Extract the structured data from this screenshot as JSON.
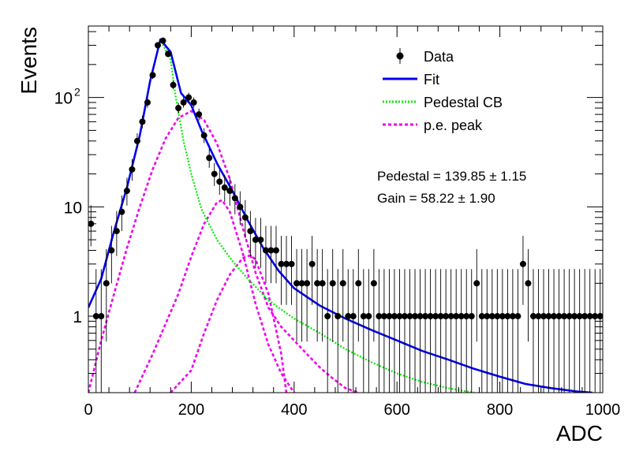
{
  "chart_data": {
    "type": "scatter",
    "title": "",
    "xlabel": "ADC",
    "ylabel": "Events",
    "xlim": [
      0,
      1000
    ],
    "ylim": [
      0.2,
      450
    ],
    "yscale": "log",
    "x_ticks": [
      0,
      200,
      400,
      600,
      800,
      1000
    ],
    "y_ticks": [
      {
        "value": 1,
        "label": "1"
      },
      {
        "value": 10,
        "label": "10"
      },
      {
        "value": 100,
        "label": "10",
        "exponent": "2"
      }
    ],
    "legend": {
      "placement": "top-right",
      "entries": [
        {
          "key": "data",
          "label": "Data",
          "style": "marker",
          "color": "#000000"
        },
        {
          "key": "fit",
          "label": "Fit",
          "style": "solid",
          "color": "#0000ee"
        },
        {
          "key": "pedestal",
          "label": "Pedestal CB",
          "style": "dotted",
          "color": "#00ee00"
        },
        {
          "key": "pe",
          "label": "p.e. peak",
          "style": "dashed",
          "color": "#ee00ee"
        }
      ]
    },
    "annotations": {
      "pedestal": "Pedestal = 139.85 ± 1.15",
      "gain": "Gain = 58.22 ± 1.90"
    },
    "fit_parameters": {
      "pedestal_mean": 139.85,
      "pedestal_error": 1.15,
      "gain": 58.22,
      "gain_error": 1.9
    },
    "series": [
      {
        "key": "data",
        "name": "Data",
        "color": "#000000",
        "x": [
          5,
          15,
          25,
          35,
          45,
          55,
          65,
          75,
          85,
          95,
          105,
          115,
          125,
          135,
          145,
          155,
          165,
          175,
          185,
          195,
          205,
          215,
          225,
          235,
          245,
          255,
          265,
          275,
          285,
          295,
          305,
          315,
          325,
          335,
          345,
          355,
          365,
          375,
          385,
          395,
          405,
          415,
          425,
          435,
          445,
          455,
          465,
          475,
          485,
          495,
          505,
          515,
          525,
          535,
          545,
          555,
          565,
          575,
          585,
          595,
          605,
          615,
          625,
          635,
          645,
          655,
          665,
          675,
          685,
          695,
          705,
          715,
          725,
          735,
          745,
          755,
          765,
          775,
          785,
          795,
          805,
          815,
          825,
          835,
          845,
          855,
          865,
          875,
          885,
          895,
          905,
          915,
          925,
          935,
          945,
          955,
          965,
          975,
          985,
          995
        ],
        "y": [
          7,
          1,
          1,
          2,
          4,
          6,
          9,
          14,
          22,
          40,
          60,
          90,
          160,
          300,
          330,
          250,
          130,
          80,
          90,
          100,
          90,
          70,
          45,
          28,
          20,
          17,
          15,
          14,
          12,
          10,
          8,
          6,
          5,
          5,
          4,
          4,
          4,
          3,
          3,
          3,
          2,
          2,
          2,
          3,
          2,
          2,
          1,
          2,
          1,
          2,
          1,
          1,
          2,
          1,
          1,
          2,
          1,
          1,
          1,
          1,
          1,
          1,
          1,
          1,
          1,
          1,
          1,
          1,
          1,
          1,
          1,
          1,
          1,
          1,
          1,
          2,
          1,
          1,
          1,
          1,
          1,
          1,
          1,
          1,
          3,
          2,
          1,
          1,
          1,
          1,
          1,
          1,
          1,
          1,
          1,
          1,
          1,
          1,
          1,
          1
        ]
      },
      {
        "key": "fit",
        "name": "Fit",
        "color": "#0000ee",
        "x": [
          0,
          25,
          50,
          75,
          100,
          120,
          140,
          160,
          180,
          200,
          220,
          250,
          280,
          310,
          340,
          370,
          400,
          450,
          500,
          550,
          600,
          650,
          700,
          750,
          800,
          850,
          900,
          950,
          980
        ],
        "y": [
          1.2,
          2.2,
          6,
          15,
          45,
          140,
          340,
          260,
          110,
          85,
          50,
          25,
          14,
          7.5,
          4.2,
          2.6,
          1.8,
          1.25,
          0.95,
          0.75,
          0.6,
          0.48,
          0.4,
          0.33,
          0.28,
          0.24,
          0.22,
          0.205,
          0.2
        ]
      },
      {
        "key": "pedestal",
        "name": "Pedestal CB",
        "color": "#00ee00",
        "x": [
          0,
          25,
          50,
          75,
          100,
          120,
          140,
          160,
          170,
          185,
          200,
          220,
          250,
          280,
          310,
          350,
          400,
          450,
          500,
          550,
          600,
          650,
          700,
          750
        ],
        "y": [
          1.2,
          2.2,
          6,
          15,
          45,
          140,
          340,
          220,
          100,
          40,
          20,
          9.5,
          5,
          3.2,
          2.2,
          1.4,
          0.95,
          0.7,
          0.5,
          0.38,
          0.3,
          0.25,
          0.22,
          0.2
        ]
      },
      {
        "key": "pe1",
        "name": "p.e. peak",
        "color": "#ee00ee",
        "x": [
          0,
          25,
          50,
          75,
          100,
          125,
          150,
          175,
          200,
          225,
          250,
          275,
          300,
          325,
          350,
          375,
          400,
          425,
          450,
          475,
          500,
          525
        ],
        "y": [
          0.2,
          0.6,
          1.6,
          4.2,
          10,
          22,
          42,
          65,
          75,
          62,
          38,
          18,
          6.5,
          2.5,
          1.2,
          0.8,
          0.6,
          0.45,
          0.34,
          0.27,
          0.22,
          0.2
        ]
      },
      {
        "key": "pe2",
        "name": "p.e. peak",
        "color": "#ee00ee",
        "x": [
          90,
          125,
          175,
          200,
          225,
          250,
          260,
          275,
          300,
          325,
          350,
          375,
          400
        ],
        "y": [
          0.2,
          0.45,
          1.6,
          3.5,
          7,
          11,
          11.5,
          9,
          3.8,
          1.3,
          0.55,
          0.3,
          0.2
        ]
      },
      {
        "key": "pe3",
        "name": "p.e. peak",
        "color": "#ee00ee",
        "x": [
          160,
          200,
          225,
          250,
          275,
          300,
          315,
          325,
          350,
          375,
          385
        ],
        "y": [
          0.2,
          0.32,
          0.7,
          1.4,
          2.4,
          3.4,
          3.6,
          3.3,
          1.6,
          0.45,
          0.2
        ]
      }
    ]
  }
}
